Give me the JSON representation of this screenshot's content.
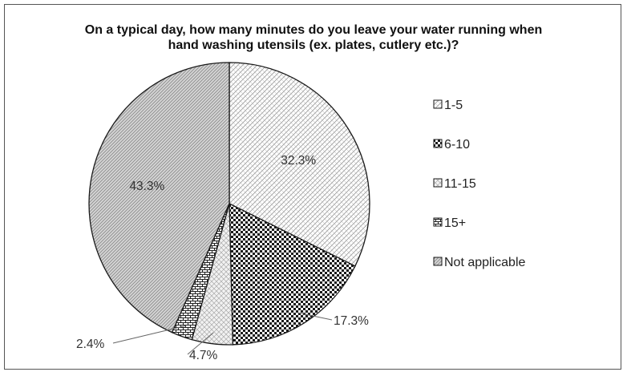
{
  "chart_data": {
    "type": "pie",
    "title_lines": [
      "On a typical day, how many minutes do you leave your water running when",
      "hand washing utensils (ex. plates, cutlery etc.)?"
    ],
    "xlabel": "",
    "ylabel": "",
    "legend_position": "right",
    "categories": [
      "1-5",
      "6-10",
      "11-15",
      "15+",
      "Not applicable"
    ],
    "values": [
      32.3,
      17.3,
      4.7,
      2.4,
      43.3
    ],
    "data_labels": [
      "32.3%",
      "17.3%",
      "4.7%",
      "2.4%",
      "43.3%"
    ],
    "patterns": [
      "light-diagonal-crosshatch",
      "heavy-checker",
      "light-diamond",
      "brick-grid",
      "dense-diagonal"
    ]
  }
}
